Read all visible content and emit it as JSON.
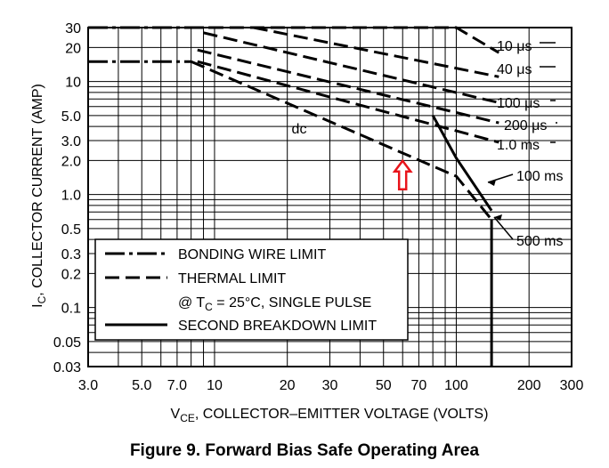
{
  "caption": "Figure 9. Forward Bias Safe Operating Area",
  "chart_data": {
    "type": "line",
    "x_scale": "log",
    "y_scale": "log",
    "xlim": [
      3,
      300
    ],
    "ylim": [
      0.03,
      30
    ],
    "grid": true,
    "xlabel": {
      "main": "V",
      "sub": "CE",
      "rest": ", COLLECTOR–EMITTER VOLTAGE (VOLTS)"
    },
    "ylabel": {
      "main": "I",
      "sub": "C",
      "rest": ", COLLECTOR CURRENT (AMP)"
    },
    "x_ticks": [
      {
        "value": 3,
        "label": "3.0"
      },
      {
        "value": 5,
        "label": "5.0"
      },
      {
        "value": 7,
        "label": "7.0"
      },
      {
        "value": 10,
        "label": "10"
      },
      {
        "value": 20,
        "label": "20"
      },
      {
        "value": 30,
        "label": "30"
      },
      {
        "value": 50,
        "label": "50"
      },
      {
        "value": 70,
        "label": "70"
      },
      {
        "value": 100,
        "label": "100"
      },
      {
        "value": 200,
        "label": "200"
      },
      {
        "value": 300,
        "label": "300"
      }
    ],
    "y_ticks": [
      {
        "value": 30,
        "label": "30"
      },
      {
        "value": 20,
        "label": "20"
      },
      {
        "value": 10,
        "label": "10"
      },
      {
        "value": 5,
        "label": "5.0"
      },
      {
        "value": 3,
        "label": "3.0"
      },
      {
        "value": 2,
        "label": "2.0"
      },
      {
        "value": 1,
        "label": "1.0"
      },
      {
        "value": 0.5,
        "label": "0.5"
      },
      {
        "value": 0.3,
        "label": "0.3"
      },
      {
        "value": 0.2,
        "label": "0.2"
      },
      {
        "value": 0.1,
        "label": "0.1"
      },
      {
        "value": 0.05,
        "label": "0.05"
      },
      {
        "value": 0.03,
        "label": "0.03"
      }
    ],
    "grid_x_values": [
      3,
      4,
      5,
      6,
      7,
      8,
      9,
      10,
      20,
      30,
      40,
      50,
      60,
      70,
      80,
      90,
      100,
      200,
      300
    ],
    "grid_y_values": [
      0.03,
      0.04,
      0.05,
      0.06,
      0.07,
      0.08,
      0.09,
      0.1,
      0.2,
      0.3,
      0.4,
      0.5,
      0.6,
      0.7,
      0.8,
      0.9,
      1,
      2,
      3,
      4,
      5,
      6,
      7,
      8,
      9,
      10,
      20,
      30
    ],
    "series": [
      {
        "label": "10 μs",
        "style": "thermal",
        "points": [
          [
            9.5,
            30
          ],
          [
            100,
            30
          ],
          [
            150,
            18
          ]
        ]
      },
      {
        "label": "40 μs",
        "style": "thermal",
        "points": [
          [
            14.5,
            30
          ],
          [
            150,
            11
          ]
        ]
      },
      {
        "label": "100 μs",
        "style": "thermal",
        "points": [
          [
            9,
            27
          ],
          [
            150,
            6.5
          ]
        ]
      },
      {
        "label": "200 μs",
        "style": "thermal",
        "points": [
          [
            8.5,
            19
          ],
          [
            150,
            4.3
          ]
        ]
      },
      {
        "label": "1.0 ms",
        "style": "thermal",
        "points": [
          [
            8.5,
            15
          ],
          [
            150,
            2.9
          ]
        ]
      },
      {
        "label": "100 ms",
        "style": "second_breakdown",
        "points": [
          [
            80,
            5
          ],
          [
            100,
            2.1
          ],
          [
            140,
            0.72
          ]
        ]
      },
      {
        "label": "500 ms",
        "style": "second_breakdown",
        "points": [
          [
            140,
            0.62
          ]
        ]
      },
      {
        "label": "dc",
        "style": "thermal",
        "points": [
          [
            8,
            15
          ],
          [
            100,
            1.45
          ],
          [
            140,
            0.6
          ]
        ]
      },
      {
        "label": "",
        "style": "bonding",
        "points": [
          [
            3,
            30
          ],
          [
            9.5,
            30
          ]
        ]
      },
      {
        "label": "",
        "style": "bonding",
        "points": [
          [
            3,
            15
          ],
          [
            8,
            15
          ]
        ]
      },
      {
        "label": "",
        "style": "second_breakdown",
        "points": [
          [
            140,
            0.6
          ],
          [
            140,
            0.03
          ]
        ]
      }
    ],
    "legend": {
      "placement": "bottom-left",
      "entries": [
        {
          "style": "bonding",
          "text": "BONDING WIRE LIMIT"
        },
        {
          "style": "thermal",
          "text": "THERMAL LIMIT"
        },
        {
          "style": "none",
          "text": "@ T",
          "sub": "C",
          "rest": " = 25°C, SINGLE PULSE"
        },
        {
          "style": "second_breakdown",
          "text": "SECOND BREAKDOWN LIMIT"
        }
      ]
    },
    "annotation": {
      "type": "red-up-arrow",
      "x": 60,
      "y": 1.6
    }
  }
}
